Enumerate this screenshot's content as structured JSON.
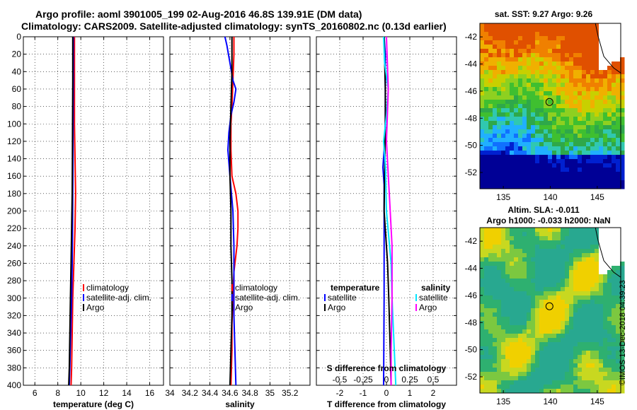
{
  "header": {
    "line1": "Argo profile: aoml 3901005_199 02-Aug-2016 46.8S 139.91E (DM data)",
    "line2": "Climatology: CARS2009. Satellite-adjusted climatology: synTS_20160802.nc (0.13d earlier)"
  },
  "colors": {
    "climatology": "#ff0000",
    "satellite": "#0000ff",
    "argo": "#000000",
    "sal_satellite": "#00e5ff",
    "sal_argo": "#ff00ff"
  },
  "chart_data": [
    {
      "id": "temperature",
      "type": "line",
      "xlabel": "temperature (deg C)",
      "ylabel": "",
      "xlim": [
        5,
        17.2
      ],
      "ylim": [
        0,
        400
      ],
      "xticks": [
        "6",
        "8",
        "10",
        "12",
        "14",
        "16"
      ],
      "xtick_values": [
        6,
        8,
        10,
        12,
        14,
        16
      ],
      "yticks": [
        "0",
        "20",
        "40",
        "60",
        "80",
        "100",
        "120",
        "140",
        "160",
        "180",
        "200",
        "220",
        "240",
        "260",
        "280",
        "300",
        "320",
        "340",
        "360",
        "380",
        "400"
      ],
      "legend": [
        "climatology",
        "satellite-adj. clim.",
        "Argo"
      ],
      "series": [
        {
          "name": "climatology",
          "color": "#ff0000",
          "depth": [
            0,
            50,
            100,
            140,
            180,
            220,
            260,
            300,
            340,
            380,
            400
          ],
          "values": [
            9.45,
            9.45,
            9.45,
            9.5,
            9.55,
            9.5,
            9.4,
            9.3,
            9.25,
            9.2,
            9.15
          ]
        },
        {
          "name": "satellite-adj. clim.",
          "color": "#0000ff",
          "depth": [
            0,
            50,
            100,
            140,
            180,
            220,
            260,
            300,
            340,
            380,
            400
          ],
          "values": [
            9.35,
            9.35,
            9.33,
            9.32,
            9.3,
            9.28,
            9.25,
            9.2,
            9.12,
            9.05,
            9.0
          ]
        },
        {
          "name": "Argo",
          "color": "#000000",
          "depth": [
            0,
            50,
            100,
            140,
            180,
            220,
            260,
            300,
            340,
            380,
            400
          ],
          "values": [
            9.3,
            9.3,
            9.28,
            9.27,
            9.25,
            9.2,
            9.15,
            9.1,
            9.05,
            9.0,
            8.95
          ]
        }
      ]
    },
    {
      "id": "salinity",
      "type": "line",
      "xlabel": "salinity",
      "ylabel": "",
      "xlim": [
        34,
        35.4
      ],
      "ylim": [
        0,
        400
      ],
      "xticks": [
        "34",
        "34.2",
        "34.4",
        "34.6",
        "34.8",
        "35",
        "35.2"
      ],
      "xtick_values": [
        34,
        34.2,
        34.4,
        34.6,
        34.8,
        35,
        35.2
      ],
      "legend": [
        "climatology",
        "satellite-adj. clim.",
        "Argo"
      ],
      "series": [
        {
          "name": "climatology",
          "color": "#ff0000",
          "depth": [
            0,
            20,
            50,
            80,
            100,
            130,
            160,
            180,
            200,
            220,
            240,
            270,
            300,
            330,
            360,
            400
          ],
          "values": [
            34.64,
            34.64,
            34.63,
            34.62,
            34.61,
            34.61,
            34.62,
            34.66,
            34.68,
            34.68,
            34.67,
            34.64,
            34.63,
            34.62,
            34.62,
            34.61
          ]
        },
        {
          "name": "satellite-adj. clim.",
          "color": "#0000ff",
          "depth": [
            0,
            10,
            30,
            50,
            60,
            75,
            90,
            110,
            130,
            160,
            200,
            240,
            280,
            320,
            360,
            400
          ],
          "values": [
            34.55,
            34.57,
            34.6,
            34.63,
            34.66,
            34.64,
            34.61,
            34.59,
            34.58,
            34.6,
            34.63,
            34.64,
            34.64,
            34.64,
            34.65,
            34.66
          ]
        },
        {
          "name": "Argo",
          "color": "#000000",
          "depth": [
            0,
            40,
            80,
            120,
            160,
            200,
            240,
            280,
            320,
            360,
            400
          ],
          "values": [
            34.62,
            34.62,
            34.61,
            34.6,
            34.6,
            34.61,
            34.61,
            34.62,
            34.62,
            34.61,
            34.6
          ]
        }
      ]
    },
    {
      "id": "difference",
      "type": "line",
      "xlabel": "T difference from climatology",
      "xlabel2": "S difference from climatology",
      "xlim": [
        -3,
        3
      ],
      "ylim": [
        0,
        400
      ],
      "xticks": [
        "-2",
        "-1",
        "0",
        "1",
        "2"
      ],
      "xtick_values": [
        -2,
        -1,
        0,
        1,
        2
      ],
      "xticks2": [
        "-0.5",
        "-0.25",
        "0",
        "0.25",
        "0.5"
      ],
      "xtick2_values": [
        -0.5,
        -0.25,
        0,
        0.25,
        0.5
      ],
      "legend_left_title": "temperature",
      "legend_right_title": "salinity",
      "legend_left": [
        "satellite",
        "Argo"
      ],
      "legend_right": [
        "satellite",
        "Argo"
      ],
      "series": [
        {
          "name": "T satellite",
          "color": "#0000ff",
          "depth": [
            0,
            20,
            60,
            100,
            130,
            150,
            170,
            200,
            260,
            300,
            400
          ],
          "values": [
            -0.1,
            -0.05,
            -0.05,
            -0.05,
            -0.1,
            -0.15,
            -0.1,
            -0.1,
            -0.1,
            -0.1,
            -0.12
          ]
        },
        {
          "name": "T Argo",
          "color": "#000000",
          "depth": [
            0,
            60,
            100,
            200,
            260,
            300,
            350,
            400
          ],
          "values": [
            -0.1,
            -0.05,
            -0.05,
            -0.1,
            0.05,
            0.1,
            0.15,
            0.2
          ]
        },
        {
          "name": "S satellite",
          "color": "#00e5ff",
          "depth": [
            0,
            30,
            60,
            90,
            120,
            150,
            200,
            260,
            300,
            400
          ],
          "values": [
            -0.03,
            -0.02,
            0.02,
            0.0,
            -0.03,
            -0.01,
            0.0,
            0.05,
            0.06,
            0.1
          ]
        },
        {
          "name": "S Argo",
          "color": "#ff00ff",
          "depth": [
            0,
            60,
            120,
            180,
            240,
            300,
            360,
            400
          ],
          "values": [
            0.0,
            0.02,
            0.0,
            0.03,
            0.06,
            0.06,
            0.05,
            0.05
          ]
        }
      ]
    }
  ],
  "maps": {
    "sst": {
      "title": "sat. SST: 9.27 Argo: 9.26",
      "xticks": [
        "135",
        "140",
        "145"
      ],
      "yticks": [
        "-42",
        "-44",
        "-46",
        "-48",
        "-50",
        "-52"
      ],
      "lon_range": [
        132.5,
        147.5
      ],
      "lat_range": [
        -53.2,
        -41.0
      ],
      "profile": [
        139.91,
        -46.8
      ]
    },
    "sla": {
      "title1": "Altim. SLA: -0.011",
      "title2": "Argo h1000: -0.033 h2000: NaN",
      "xticks": [
        "135",
        "140",
        "145"
      ],
      "yticks": [
        "-42",
        "-44",
        "-46",
        "-48",
        "-50",
        "-52"
      ],
      "lon_range": [
        132.5,
        147.5
      ],
      "lat_range": [
        -53.2,
        -41.0
      ],
      "profile": [
        139.91,
        -46.8
      ]
    }
  },
  "stamp": "©IMOS 13-Dec-2018 04:39:23"
}
